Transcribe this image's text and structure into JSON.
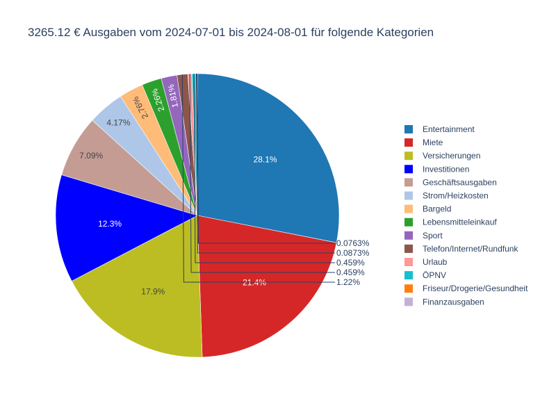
{
  "chart_data": {
    "type": "pie",
    "title": "3265.12 € Ausgaben vom 2024-07-01 bis 2024-08-01 für folgende Kategorien",
    "legend_position": "right",
    "slices": [
      {
        "name": "Entertainment",
        "percent": 28.1,
        "label": "28.1%",
        "color": "#1f77b4",
        "label_color": "#ffffff"
      },
      {
        "name": "Miete",
        "percent": 21.4,
        "label": "21.4%",
        "color": "#d62728",
        "label_color": "#ffffff"
      },
      {
        "name": "Versicherungen",
        "percent": 17.9,
        "label": "17.9%",
        "color": "#bcbd22",
        "label_color": "#444444"
      },
      {
        "name": "Investitionen",
        "percent": 12.3,
        "label": "12.3%",
        "color": "#0000ff",
        "label_color": "#ffffff"
      },
      {
        "name": "Geschäftsausgaben",
        "percent": 7.09,
        "label": "7.09%",
        "color": "#c49c94",
        "label_color": "#444444"
      },
      {
        "name": "Strom/Heizkosten",
        "percent": 4.17,
        "label": "4.17%",
        "color": "#aec7e8",
        "label_color": "#444444"
      },
      {
        "name": "Bargeld",
        "percent": 2.76,
        "label": "2.76%",
        "color": "#ffbb78",
        "label_color": "#444444"
      },
      {
        "name": "Lebensmitteleinkauf",
        "percent": 2.26,
        "label": "2.26%",
        "color": "#2ca02c",
        "label_color": "#ffffff"
      },
      {
        "name": "Sport",
        "percent": 1.81,
        "label": "1.81%",
        "color": "#9467bd",
        "label_color": "#ffffff"
      },
      {
        "name": "Telefon/Internet/Rundfunk",
        "percent": 1.22,
        "label": "1.22%",
        "color": "#8c564b",
        "label_color": "#444444"
      },
      {
        "name": "Urlaub",
        "percent": 0.459,
        "label": "0.459%",
        "color": "#ff9896",
        "label_color": "#444444"
      },
      {
        "name": "ÖPNV",
        "percent": 0.459,
        "label": "0.459%",
        "color": "#17becf",
        "label_color": "#444444"
      },
      {
        "name": "Friseur/Drogerie/Gesundheit",
        "percent": 0.0873,
        "label": "0.0873%",
        "color": "#ff7f0e",
        "label_color": "#444444"
      },
      {
        "name": "Finanzausgaben",
        "percent": 0.0763,
        "label": "0.0763%",
        "color": "#c5b0d5",
        "label_color": "#444444"
      }
    ]
  }
}
